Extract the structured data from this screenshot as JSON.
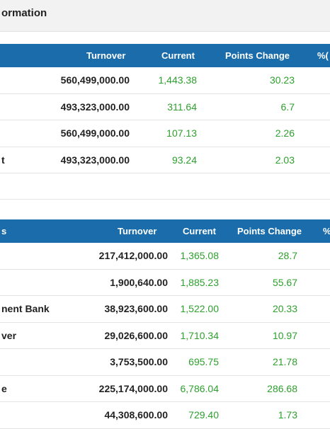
{
  "header": {
    "title": "ormation"
  },
  "table1": {
    "columns": [
      "Turnover",
      "Current",
      "Points Change",
      "%("
    ],
    "rows": [
      {
        "name": "",
        "turnover": "560,499,000.00",
        "current": "1,443.38",
        "points": "30.23"
      },
      {
        "name": "",
        "turnover": "493,323,000.00",
        "current": "311.64",
        "points": "6.7"
      },
      {
        "name": "",
        "turnover": "560,499,000.00",
        "current": "107.13",
        "points": "2.26"
      },
      {
        "name": "t",
        "turnover": "493,323,000.00",
        "current": "93.24",
        "points": "2.03"
      }
    ]
  },
  "table2": {
    "columns": [
      "s",
      "Turnover",
      "Current",
      "Points Change",
      "%"
    ],
    "rows": [
      {
        "name": "",
        "turnover": "217,412,000.00",
        "current": "1,365.08",
        "points": "28.7"
      },
      {
        "name": "",
        "turnover": "1,900,640.00",
        "current": "1,885.23",
        "points": "55.67"
      },
      {
        "name": "nent Bank",
        "turnover": "38,923,600.00",
        "current": "1,522.00",
        "points": "20.33"
      },
      {
        "name": "ver",
        "turnover": "29,026,600.00",
        "current": "1,710.34",
        "points": "10.97"
      },
      {
        "name": "",
        "turnover": "3,753,500.00",
        "current": "695.75",
        "points": "21.78"
      },
      {
        "name": "e",
        "turnover": "225,174,000.00",
        "current": "6,786.04",
        "points": "286.68"
      },
      {
        "name": "",
        "turnover": "44,308,600.00",
        "current": "729.40",
        "points": "1.73"
      }
    ]
  }
}
